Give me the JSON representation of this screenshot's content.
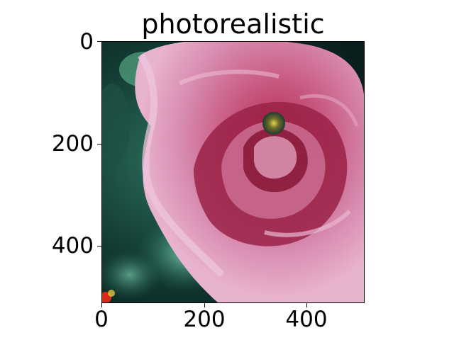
{
  "figure": {
    "title": "photorealistic"
  },
  "axes": {
    "y_ticks": [
      "0",
      "200",
      "400"
    ],
    "x_ticks": [
      "0",
      "200",
      "400"
    ]
  },
  "image": {
    "subject": "rose-icon",
    "colors": {
      "petal_light": "#e6a3c4",
      "petal_mid": "#c7577f",
      "petal_deep": "#8a1a3a",
      "background_dark": "#0f2e2a",
      "background_teal": "#4fb8a0",
      "accent_yellow": "#d8d23a"
    }
  }
}
